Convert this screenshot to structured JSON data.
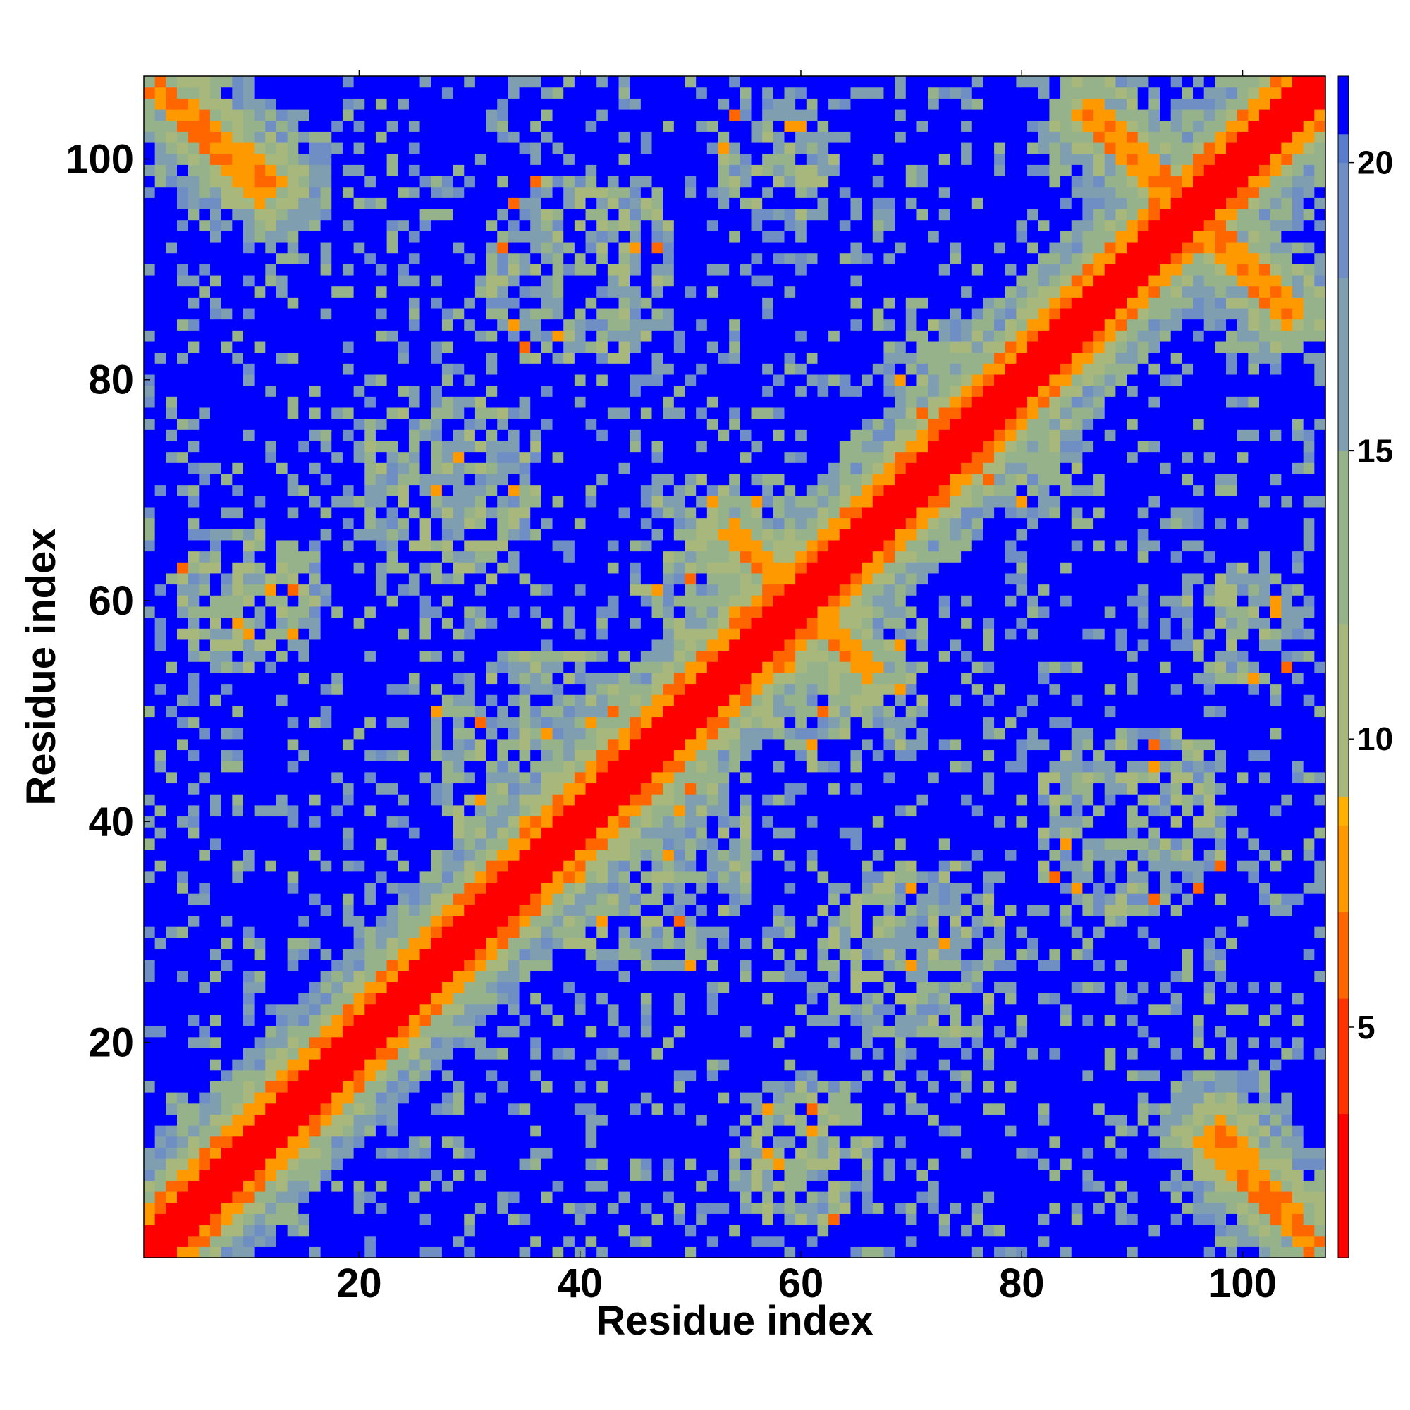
{
  "chart_data": {
    "type": "heatmap",
    "title": "",
    "xlabel": "Residue index",
    "ylabel": "Residue index",
    "n_residues": 107,
    "xlim": [
      1,
      107
    ],
    "ylim": [
      1,
      107
    ],
    "xticks": [
      20,
      40,
      60,
      80,
      100
    ],
    "yticks": [
      20,
      40,
      60,
      80,
      100
    ],
    "colorbar": {
      "range": [
        1,
        21.5
      ],
      "ticks": [
        5,
        10,
        15,
        20
      ],
      "stops": [
        {
          "value": 1.0,
          "color": "#ff0000"
        },
        {
          "value": 3.5,
          "color": "#ff3300"
        },
        {
          "value": 5.5,
          "color": "#ff6600"
        },
        {
          "value": 7.0,
          "color": "#ff9900"
        },
        {
          "value": 8.5,
          "color": "#ffb000"
        },
        {
          "value": 9.0,
          "color": "#a8b87c"
        },
        {
          "value": 12.0,
          "color": "#96b28a"
        },
        {
          "value": 15.0,
          "color": "#7f9fb0"
        },
        {
          "value": 18.0,
          "color": "#6f8fc4"
        },
        {
          "value": 20.0,
          "color": "#5a7ccc"
        },
        {
          "value": 20.5,
          "color": "#0000ff"
        }
      ]
    },
    "description_of_values": "Pairwise residue distance map (Å): diagonal ~0-4 (red), diagonal flanks orange, secondary-structure contacts green/grey, far pairs saturated blue (>20).",
    "features": {
      "main_diagonal": {
        "from": 1,
        "to": 107
      },
      "antidiagonal_contacts": [
        {
          "i_from": 2,
          "i_to": 11,
          "j_from": 106,
          "j_to": 97
        },
        {
          "i_from": 87,
          "i_to": 104,
          "j_from": 104,
          "j_to": 86
        },
        {
          "i_from": 98,
          "i_to": 106,
          "j_from": 12,
          "j_to": 2
        },
        {
          "i_from": 55,
          "i_to": 66,
          "j_from": 65,
          "j_to": 54
        }
      ],
      "contact_clusters": [
        {
          "center": [
            36,
            46
          ],
          "radius": 10
        },
        {
          "center": [
            46,
            36
          ],
          "radius": 10
        },
        {
          "center": [
            64,
            52
          ],
          "radius": 8
        },
        {
          "center": [
            52,
            64
          ],
          "radius": 8
        },
        {
          "center": [
            80,
            73
          ],
          "radius": 6
        },
        {
          "center": [
            73,
            80
          ],
          "radius": 6
        },
        {
          "center": [
            28,
            70
          ],
          "radius": 9
        },
        {
          "center": [
            70,
            28
          ],
          "radius": 9
        },
        {
          "center": [
            90,
            40
          ],
          "radius": 9
        },
        {
          "center": [
            40,
            90
          ],
          "radius": 9
        },
        {
          "center": [
            10,
            60
          ],
          "radius": 7
        },
        {
          "center": [
            60,
            10
          ],
          "radius": 7
        },
        {
          "center": [
            100,
            58
          ],
          "radius": 6
        },
        {
          "center": [
            58,
            100
          ],
          "radius": 6
        }
      ]
    }
  }
}
